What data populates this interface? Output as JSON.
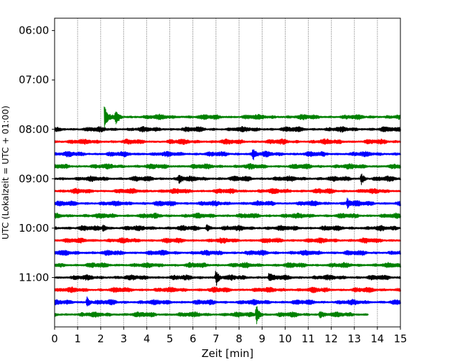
{
  "chart_data": {
    "type": "line",
    "title": "",
    "xlabel": "Zeit  [min]",
    "ylabel": "UTC (Lokalzeit = UTC + 01:00)",
    "xlim": [
      0,
      15
    ],
    "xticks": [
      0,
      1,
      2,
      3,
      4,
      5,
      6,
      7,
      8,
      9,
      10,
      11,
      12,
      13,
      14,
      15
    ],
    "y_time_range": [
      "05:45",
      "12:00"
    ],
    "yticks": [
      "06:00",
      "07:00",
      "08:00",
      "09:00",
      "10:00",
      "11:00"
    ],
    "grid": "vertical-dotted",
    "color_cycle": [
      "#000000",
      "#ff0000",
      "#0000ff",
      "#008000"
    ],
    "series": [
      {
        "start_time": "07:45",
        "x_start": 2.15,
        "x_end": 15,
        "color": "#008000"
      },
      {
        "start_time": "08:00",
        "x_start": 0,
        "x_end": 15,
        "color": "#000000"
      },
      {
        "start_time": "08:15",
        "x_start": 0,
        "x_end": 15,
        "color": "#ff0000"
      },
      {
        "start_time": "08:30",
        "x_start": 0,
        "x_end": 15,
        "color": "#0000ff"
      },
      {
        "start_time": "08:45",
        "x_start": 0,
        "x_end": 15,
        "color": "#008000"
      },
      {
        "start_time": "09:00",
        "x_start": 0,
        "x_end": 15,
        "color": "#000000"
      },
      {
        "start_time": "09:15",
        "x_start": 0,
        "x_end": 15,
        "color": "#ff0000"
      },
      {
        "start_time": "09:30",
        "x_start": 0,
        "x_end": 15,
        "color": "#0000ff"
      },
      {
        "start_time": "09:45",
        "x_start": 0,
        "x_end": 15,
        "color": "#008000"
      },
      {
        "start_time": "10:00",
        "x_start": 0,
        "x_end": 15,
        "color": "#000000"
      },
      {
        "start_time": "10:15",
        "x_start": 0,
        "x_end": 15,
        "color": "#ff0000"
      },
      {
        "start_time": "10:30",
        "x_start": 0,
        "x_end": 15,
        "color": "#0000ff"
      },
      {
        "start_time": "10:45",
        "x_start": 0,
        "x_end": 15,
        "color": "#008000"
      },
      {
        "start_time": "11:00",
        "x_start": 0,
        "x_end": 15,
        "color": "#000000"
      },
      {
        "start_time": "11:15",
        "x_start": 0,
        "x_end": 15,
        "color": "#ff0000"
      },
      {
        "start_time": "11:30",
        "x_start": 0,
        "x_end": 15,
        "color": "#0000ff"
      },
      {
        "start_time": "11:45",
        "x_start": 0,
        "x_end": 13.6,
        "color": "#008000"
      }
    ],
    "events": [
      {
        "series_index": 0,
        "x": 2.15,
        "amplitude": 1.0
      },
      {
        "series_index": 0,
        "x": 2.65,
        "amplitude": 0.5
      },
      {
        "series_index": 3,
        "x": 8.6,
        "amplitude": 0.45
      },
      {
        "series_index": 5,
        "x": 5.4,
        "amplitude": 0.4
      },
      {
        "series_index": 5,
        "x": 13.3,
        "amplitude": 0.55
      },
      {
        "series_index": 7,
        "x": 12.7,
        "amplitude": 0.5
      },
      {
        "series_index": 9,
        "x": 2.1,
        "amplitude": 0.4
      },
      {
        "series_index": 9,
        "x": 6.6,
        "amplitude": 0.35
      },
      {
        "series_index": 13,
        "x": 7.0,
        "amplitude": 0.7
      },
      {
        "series_index": 13,
        "x": 9.3,
        "amplitude": 0.35
      },
      {
        "series_index": 15,
        "x": 1.4,
        "amplitude": 0.55
      },
      {
        "series_index": 16,
        "x": 8.75,
        "amplitude": 1.1
      },
      {
        "series_index": 16,
        "x": 11.5,
        "amplitude": 0.35
      }
    ]
  }
}
